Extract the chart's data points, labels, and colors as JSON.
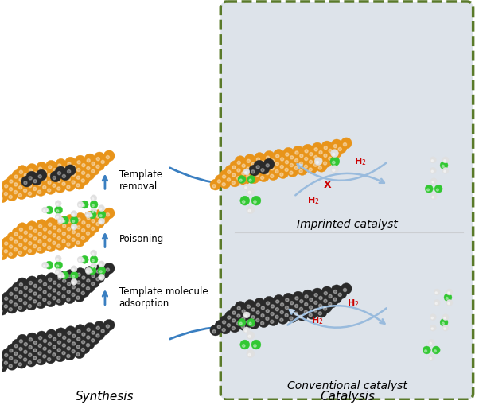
{
  "title_synthesis": "Synthesis",
  "title_catalysis": "Catalysis",
  "title_conventional": "Conventional catalyst",
  "title_imprinted": "Imprinted catalyst",
  "label_template": "Template molecule\nadsorption",
  "label_poisoning": "Poisoning",
  "label_removal": "Template\nremoval",
  "color_dark": "#2a2a2a",
  "color_orange": "#e8941a",
  "color_green": "#32c832",
  "color_white_sphere": "#e0e0e0",
  "color_bg_right": "#dde3ea",
  "color_arrow_blue": "#3a7fc1",
  "color_dashed_border": "#5a7a2a",
  "color_h2_red": "#cc0000",
  "figsize": [
    6.02,
    5.09
  ],
  "dpi": 100
}
